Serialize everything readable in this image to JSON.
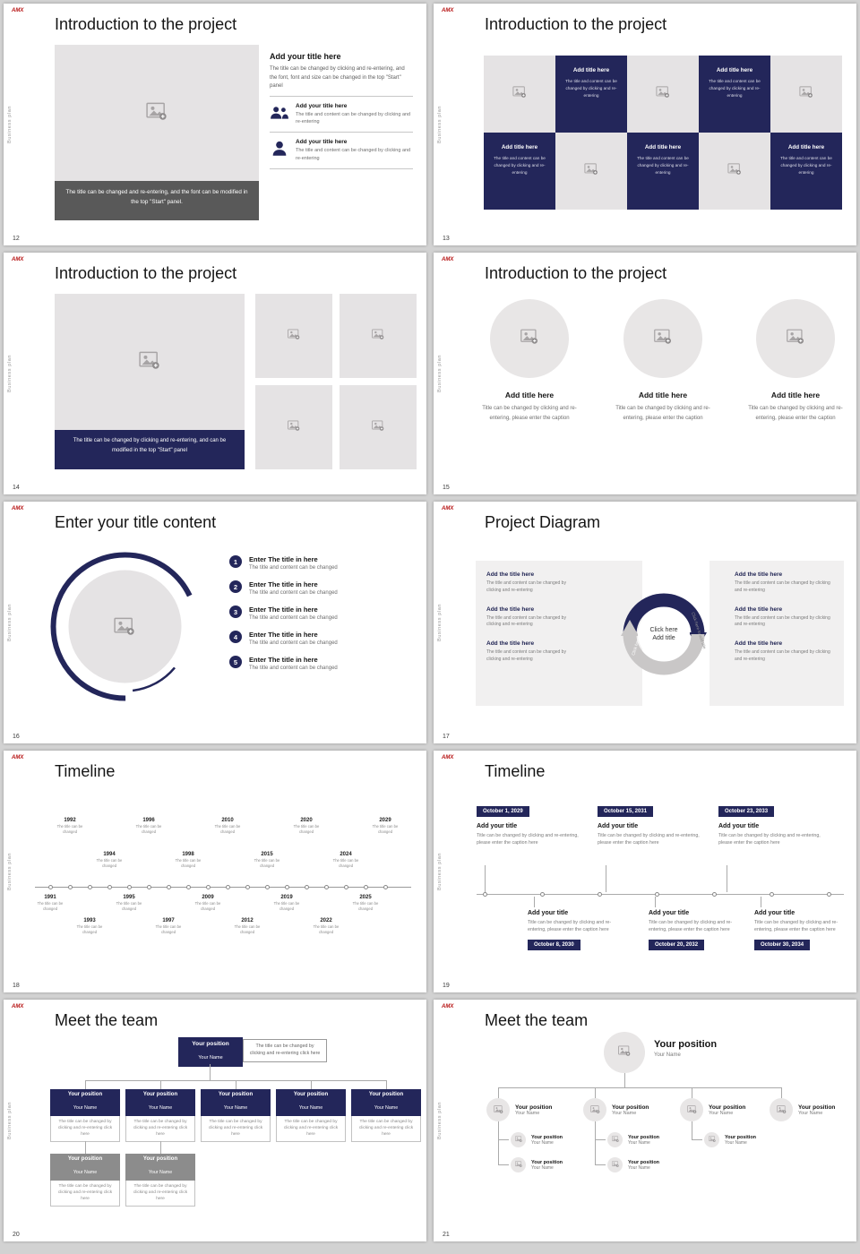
{
  "common": {
    "sidebar_label": "Business plan",
    "logo_text": "AMX",
    "colors": {
      "navy": "#23265a",
      "placeholder_gray": "#e5e3e4",
      "caption_gray": "#595959",
      "box_gray": "#8c8c8c",
      "logo_red": "#b50f0f"
    }
  },
  "slides": [
    {
      "page": "12",
      "title": "Introduction to the project",
      "caption": "The title can be changed and re-entering, and the font can be modified in the top \"Start\" panel.",
      "heading": "Add your title here",
      "paragraph": "The title can be changed by clicking and re-entering, and the font, font and size can be changed in the top \"Start\" panel",
      "items": [
        {
          "title": "Add your title here",
          "text": "The title and content can be changed by clicking and re-entering"
        },
        {
          "title": "Add your title here",
          "text": "The title and content can be changed by clicking and re-entering"
        }
      ]
    },
    {
      "page": "13",
      "title": "Introduction to the project",
      "cell": {
        "title": "Add title here",
        "text": "The title and content can be changed by clicking and re-entering"
      }
    },
    {
      "page": "14",
      "title": "Introduction to the project",
      "caption": "The title can be changed by clicking and re-entering, and can be modified in the top \"Start\" panel"
    },
    {
      "page": "15",
      "title": "Introduction to the project",
      "items": [
        {
          "title": "Add title here",
          "text": "Title can be changed by clicking and re-entering, please enter the caption"
        },
        {
          "title": "Add title here",
          "text": "Title can be changed by clicking and re-entering, please enter the caption"
        },
        {
          "title": "Add title here",
          "text": "Title can be changed by clicking and re-entering, please enter the caption"
        }
      ]
    },
    {
      "page": "16",
      "title": "Enter your title content",
      "items": [
        {
          "num": "1",
          "title": "Enter The title in here",
          "text": "The title and content can be changed"
        },
        {
          "num": "2",
          "title": "Enter The title in here",
          "text": "The title and content can be changed"
        },
        {
          "num": "3",
          "title": "Enter The title in here",
          "text": "The title and content can be changed"
        },
        {
          "num": "4",
          "title": "Enter The title in here",
          "text": "The title and content can be changed"
        },
        {
          "num": "5",
          "title": "Enter The title in here",
          "text": "The title and content can be changed"
        }
      ]
    },
    {
      "page": "17",
      "title": "Project Diagram",
      "center": {
        "line1": "Click here",
        "line2": "Add title"
      },
      "arc_label": "Click here to add title",
      "left_items": [
        {
          "title": "Add the title here",
          "text": "The title and content can be changed by clicking and re-entering"
        },
        {
          "title": "Add the title here",
          "text": "The title and content can be changed by clicking and re-entering"
        },
        {
          "title": "Add the title here",
          "text": "The title and content can be changed by clicking and re-entering"
        }
      ],
      "right_items": [
        {
          "title": "Add the title here",
          "text": "The title and content can be changed by clicking and re-entering"
        },
        {
          "title": "Add the title here",
          "text": "The title and content can be changed by clicking and re-entering"
        },
        {
          "title": "Add the title here",
          "text": "The title and content can be changed by clicking and re-entering"
        }
      ]
    },
    {
      "page": "18",
      "title": "Timeline",
      "node_text": "The title can be changed",
      "entries": [
        {
          "year": "1991"
        },
        {
          "year": "1992"
        },
        {
          "year": "1993"
        },
        {
          "year": "1994"
        },
        {
          "year": "1995"
        },
        {
          "year": "1996"
        },
        {
          "year": "1997"
        },
        {
          "year": "1998"
        },
        {
          "year": "2009"
        },
        {
          "year": "2010"
        },
        {
          "year": "2012"
        },
        {
          "year": "2015"
        },
        {
          "year": "2019"
        },
        {
          "year": "2020"
        },
        {
          "year": "2022"
        },
        {
          "year": "2024"
        },
        {
          "year": "2025"
        },
        {
          "year": "2029"
        }
      ]
    },
    {
      "page": "19",
      "title": "Timeline",
      "top_groups": [
        {
          "date": "October 1, 2029",
          "title": "Add your title",
          "text": "Title can be changed by clicking and re-entering, please enter the caption here"
        },
        {
          "date": "October 15, 2031",
          "title": "Add your title",
          "text": "Title can be changed by clicking and re-entering, please enter the caption here"
        },
        {
          "date": "October 23, 2033",
          "title": "Add your title",
          "text": "Title can be changed by clicking and re-entering, please enter the caption here"
        }
      ],
      "bottom_groups": [
        {
          "date": "October 8, 2030",
          "title": "Add your title",
          "text": "Title can be changed by clicking and re-entering, please enter the caption here"
        },
        {
          "date": "October 20, 2032",
          "title": "Add your title",
          "text": "Title can be changed by clicking and re-entering, please enter the caption here"
        },
        {
          "date": "October 30, 2034",
          "title": "Add your title",
          "text": "Title can be changed by clicking and re-entering, please enter the caption here"
        }
      ]
    },
    {
      "page": "20",
      "title": "Meet the team",
      "root": {
        "position": "Your position",
        "name": "Your Name"
      },
      "note": "The title can be changed by clicking and re-entering click here",
      "box_text": "The title can be changed by clicking and re-entering click here",
      "row": [
        {
          "position": "Your position",
          "name": "Your Name"
        },
        {
          "position": "Your position",
          "name": "Your Name"
        },
        {
          "position": "Your position",
          "name": "Your Name"
        },
        {
          "position": "Your position",
          "name": "Your Name"
        },
        {
          "position": "Your position",
          "name": "Your Name"
        }
      ],
      "extra": [
        {
          "position": "Your position",
          "name": "Your Name"
        },
        {
          "position": "Your position",
          "name": "Your Name"
        }
      ]
    },
    {
      "page": "21",
      "title": "Meet the team",
      "leader": {
        "position": "Your position",
        "name": "Your Name"
      },
      "branches": [
        {
          "position": "Your position",
          "name": "Your Name"
        },
        {
          "position": "Your position",
          "name": "Your Name"
        },
        {
          "position": "Your position",
          "name": "Your Name"
        },
        {
          "position": "Your position",
          "name": "Your Name"
        }
      ],
      "subs": [
        {
          "position": "Your position",
          "name": "Your Name"
        },
        {
          "position": "Your position",
          "name": "Your Name"
        },
        {
          "position": "Your position",
          "name": "Your Name"
        },
        {
          "position": "Your position",
          "name": "Your Name"
        },
        {
          "position": "Your position",
          "name": "Your Name"
        }
      ]
    }
  ]
}
